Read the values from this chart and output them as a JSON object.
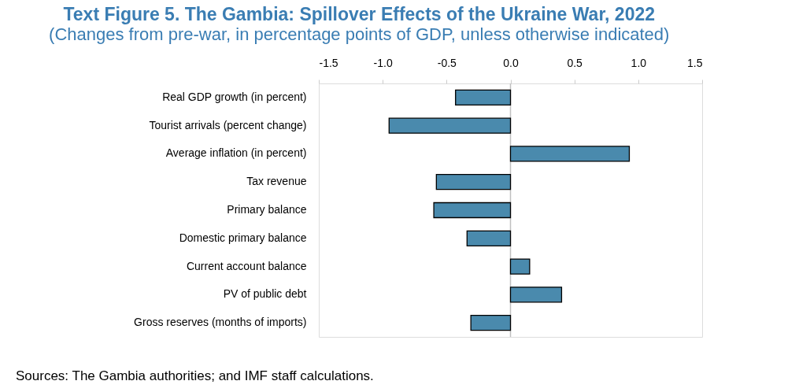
{
  "chart_data": {
    "type": "bar",
    "orientation": "horizontal",
    "title": "Text Figure 5. The Gambia: Spillover Effects of the Ukraine War, 2022",
    "subtitle": "(Changes from pre-war, in percentage points of GDP, unless otherwise indicated)",
    "categories": [
      "Real GDP growth (in percent)",
      "Tourist arrivals (percent change)",
      "Average inflation (in percent)",
      "Tax revenue",
      "Primary balance",
      "Domestic primary balance",
      "Current account balance",
      "PV of public debt",
      "Gross reserves (months of imports)"
    ],
    "values": [
      -0.43,
      -0.95,
      0.93,
      -0.58,
      -0.6,
      -0.34,
      0.15,
      0.4,
      -0.31
    ],
    "color": "#4a8aad",
    "xlim": [
      -1.5,
      1.5
    ],
    "xticks": [
      -1.5,
      {
        "value": -1,
        "label": "-1.0"
      },
      -0.5,
      {
        "value": 0,
        "label": "0.0"
      },
      0.5,
      {
        "value": 1,
        "label": "1.0"
      },
      1.5
    ],
    "annotations": [
      "Sources: The Gambia authorities; and IMF staff calculations."
    ]
  }
}
